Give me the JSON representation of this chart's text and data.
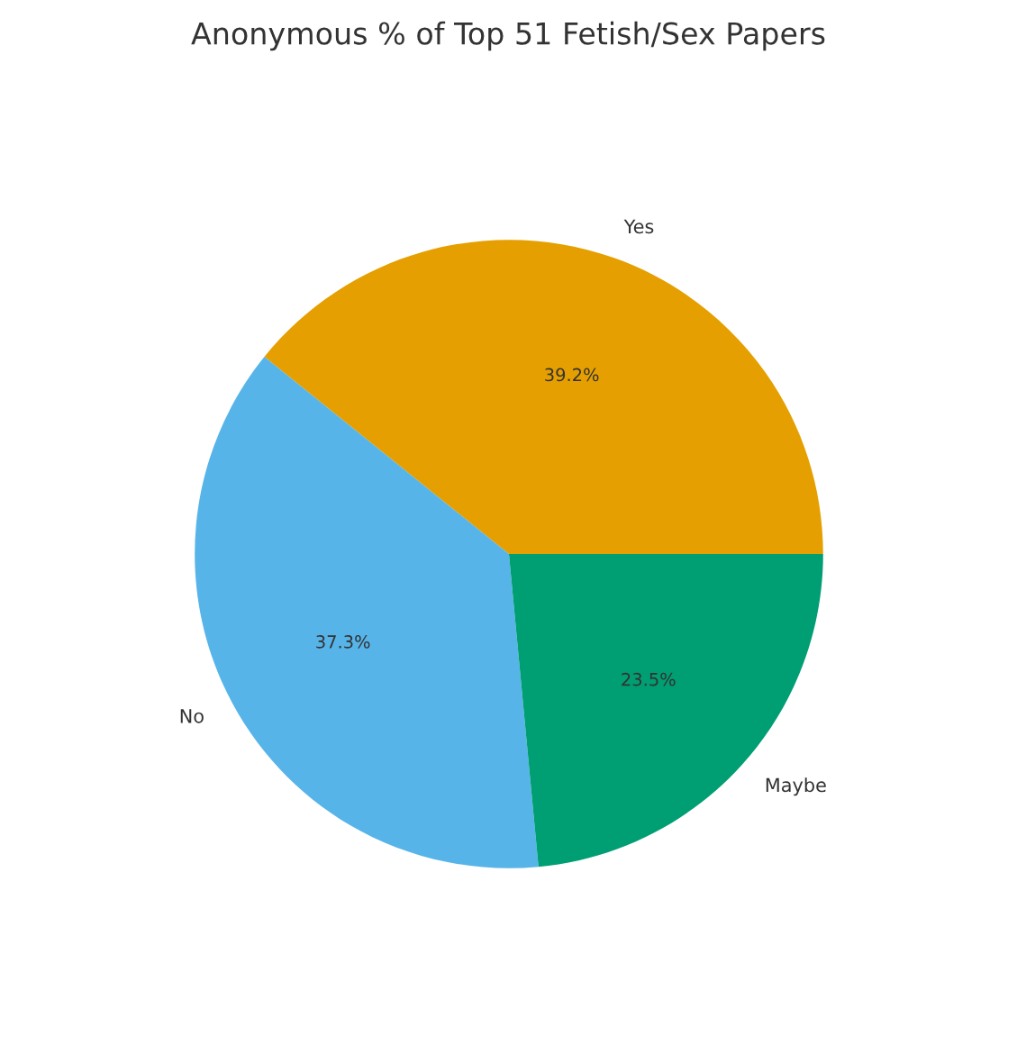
{
  "chart_data": {
    "type": "pie",
    "title": "Anonymous % of Top 51 Fetish/Sex Papers",
    "categories": [
      "Yes",
      "No",
      "Maybe"
    ],
    "values": [
      39.2,
      37.3,
      23.5
    ],
    "colors": [
      "#e69f00",
      "#56b4e9",
      "#009e73"
    ],
    "value_labels": [
      "39.2%",
      "37.3%",
      "23.5%"
    ]
  }
}
